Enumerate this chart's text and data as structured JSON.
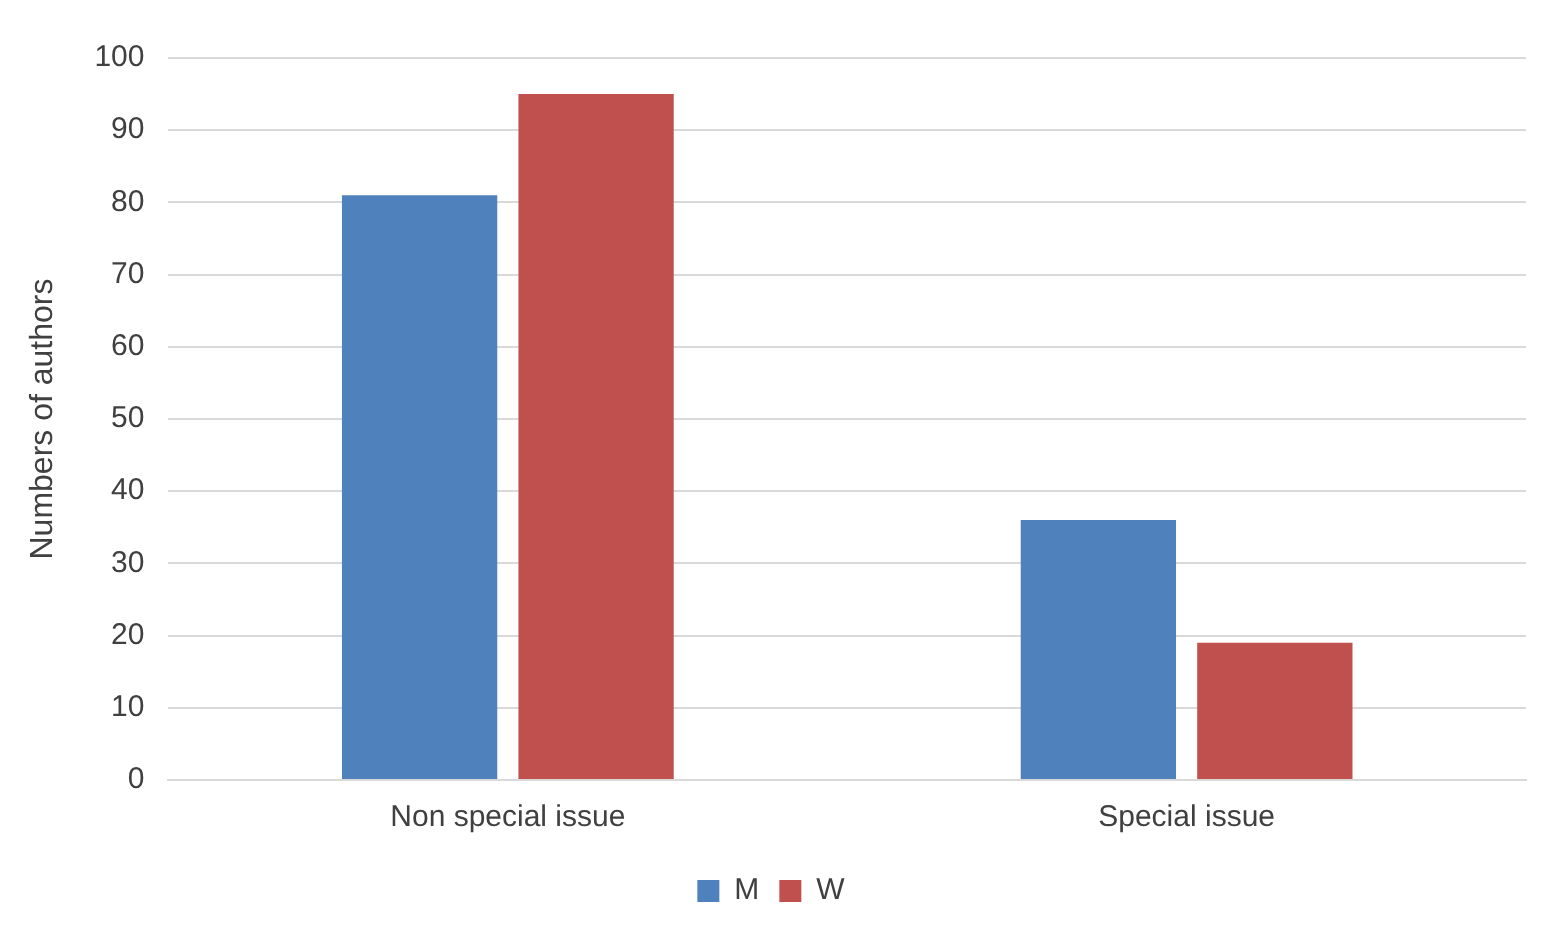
{
  "chart_data": {
    "type": "bar",
    "ylabel": "Numbers of authors",
    "categories": [
      "Non special issue",
      "Special issue"
    ],
    "series": [
      {
        "name": "M",
        "color": "#4f81bd",
        "values": [
          81,
          36
        ]
      },
      {
        "name": "W",
        "color": "#c0504d",
        "values": [
          95,
          19
        ]
      }
    ],
    "ylim": [
      0,
      100
    ],
    "yticks": [
      0,
      10,
      20,
      30,
      40,
      50,
      60,
      70,
      80,
      90,
      100
    ],
    "grid": "y",
    "legend": "bottom"
  }
}
